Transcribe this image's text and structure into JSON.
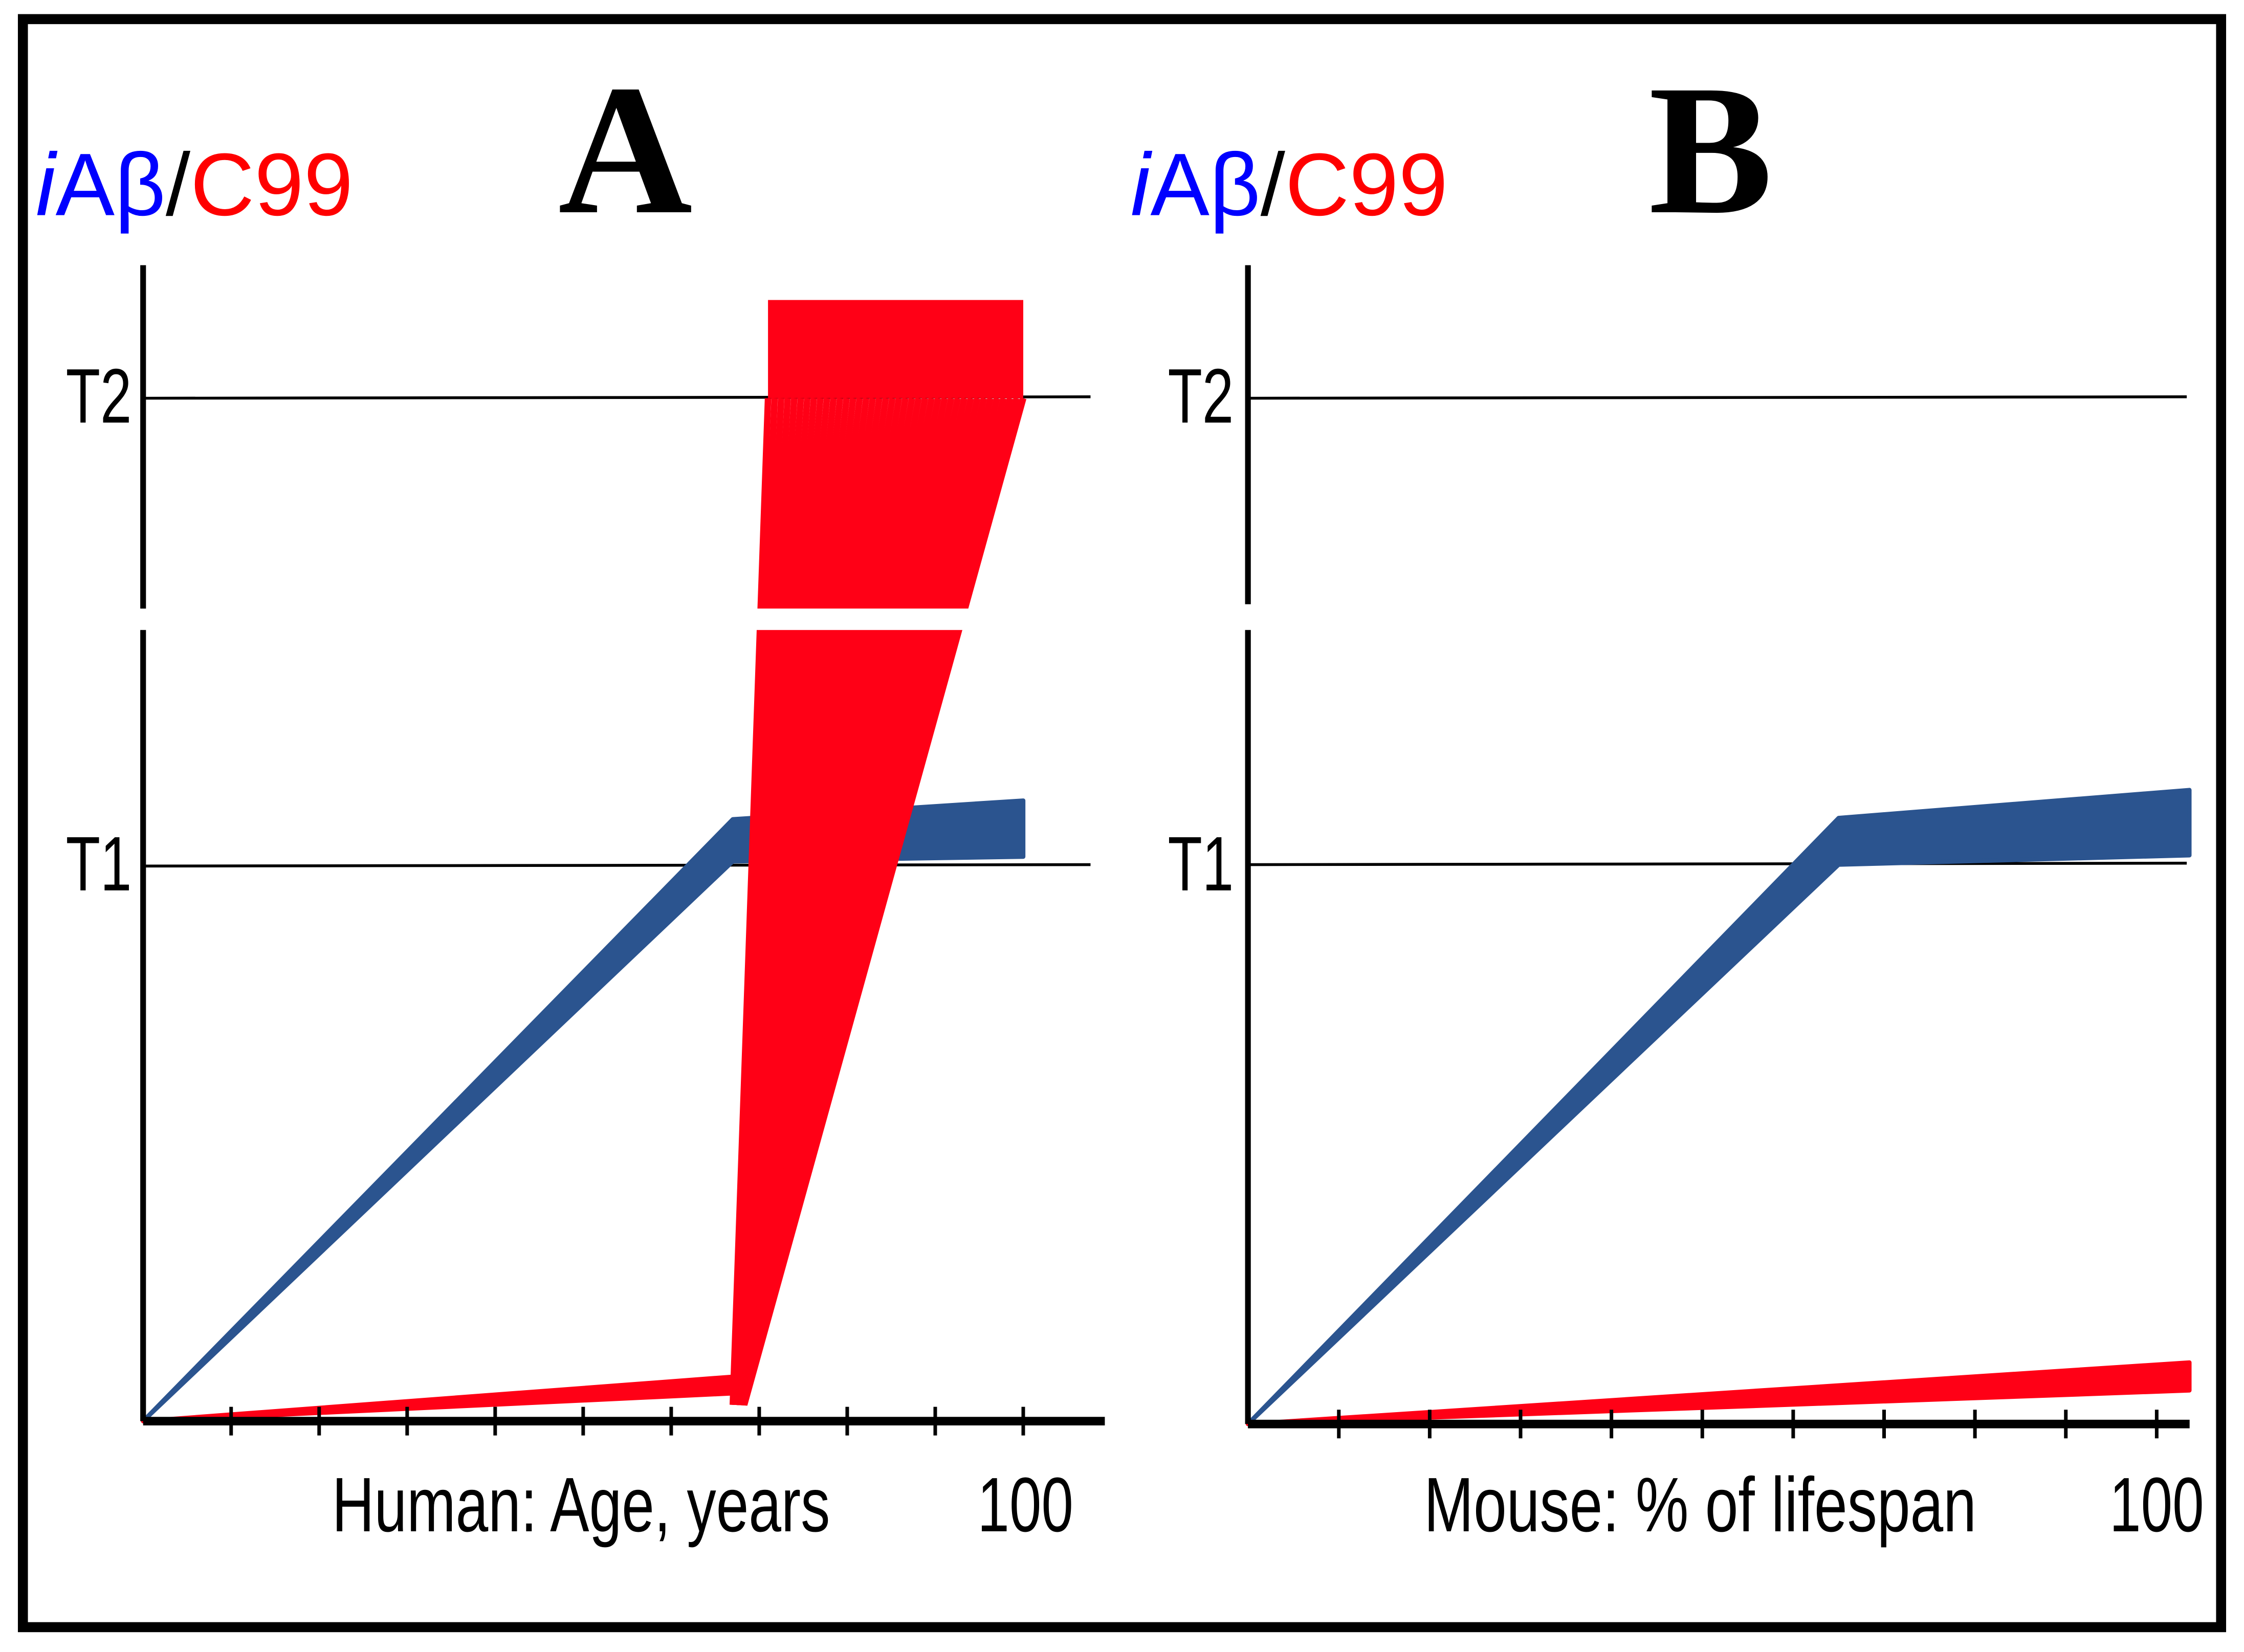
{
  "colors": {
    "iabeta": "#0000ff",
    "c99": "#ff0000",
    "iabeta_band": "#2b548f",
    "c99_band": "#ff0016",
    "axis": "#000000"
  },
  "chart_data": [
    {
      "type": "line",
      "panel": "A",
      "ylabel_parts": {
        "i": "i",
        "abeta": "Aβ",
        "slash": "/",
        "c99": "C99"
      },
      "xlabel": "Human: Age, years",
      "x_end_label": "100",
      "xlim": [
        0,
        100
      ],
      "x_ticks": [
        10,
        20,
        30,
        40,
        50,
        60,
        70,
        80,
        90,
        100
      ],
      "y_broken_axis": true,
      "thresholds": [
        {
          "label": "T1",
          "value": 1
        },
        {
          "label": "T2",
          "value": 2
        }
      ],
      "series": [
        {
          "name": "iAβ",
          "kind": "band",
          "upper": [
            [
              0,
              0
            ],
            [
              67,
              1.1
            ],
            [
              100,
              1.14
            ]
          ],
          "lower": [
            [
              0,
              0
            ],
            [
              67,
              1.01
            ],
            [
              100,
              1.02
            ]
          ]
        },
        {
          "name": "C99",
          "kind": "band",
          "upper": [
            [
              0,
              0
            ],
            [
              67,
              0.08
            ]
          ],
          "lower": [
            [
              0,
              0
            ],
            [
              67,
              0.05
            ]
          ]
        },
        {
          "name": "C99 surge",
          "kind": "fan",
          "from_x": [
            67,
            68.3
          ],
          "from_y": 0.05,
          "to_x": [
            71,
            100
          ],
          "to_y": 2.0,
          "lines": 40
        },
        {
          "name": "C99 above T2",
          "kind": "block",
          "x": [
            71,
            100
          ],
          "y": [
            2.0,
            2.21
          ]
        }
      ]
    },
    {
      "type": "line",
      "panel": "B",
      "ylabel_parts": {
        "i": "i",
        "abeta": "Aβ",
        "slash": "/",
        "c99": "C99"
      },
      "xlabel": "Mouse: % of lifespan",
      "x_end_label": "100",
      "xlim": [
        0,
        100
      ],
      "x_ticks": [
        10,
        20,
        30,
        40,
        50,
        60,
        70,
        80,
        90,
        100
      ],
      "y_broken_axis": true,
      "thresholds": [
        {
          "label": "T1",
          "value": 1
        },
        {
          "label": "T2",
          "value": 2
        }
      ],
      "series": [
        {
          "name": "iAβ",
          "kind": "band",
          "upper": [
            [
              0,
              0
            ],
            [
              65,
              1.1
            ],
            [
              103.6,
              1.16
            ]
          ],
          "lower": [
            [
              0,
              0
            ],
            [
              65,
              1.0
            ],
            [
              103.6,
              1.02
            ]
          ]
        },
        {
          "name": "C99",
          "kind": "band",
          "upper": [
            [
              0,
              0
            ],
            [
              103.6,
              0.11
            ]
          ],
          "lower": [
            [
              0,
              0
            ],
            [
              103.6,
              0.06
            ]
          ]
        }
      ]
    }
  ]
}
